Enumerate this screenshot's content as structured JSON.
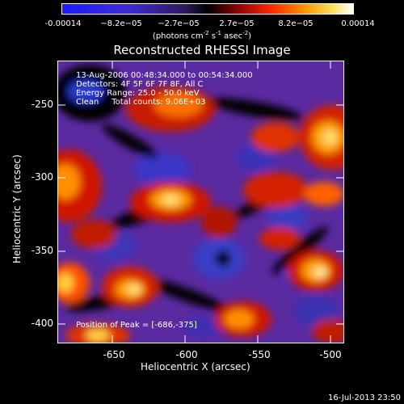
{
  "colorbar": {
    "tick_labels": [
      "-0.00014",
      "−8.2e−05",
      "−2.7e−05",
      "2.7e−05",
      "8.2e−05",
      "0.00014"
    ],
    "units_label": "(photons cm",
    "units_sup1": "-2",
    "units_mid": " s",
    "units_sup2": "-1",
    "units_end": " asec",
    "units_sup3": "-2",
    "units_close": ")",
    "range": [
      -0.00014,
      0.00014
    ]
  },
  "title": "Reconstructed RHESSI Image",
  "info": {
    "time_range": "13-Aug-2006 00:48:34.000 to 00:54:34.000",
    "detectors": "Detectors: 4F 5F 6F 7F 8F, All C",
    "energy": "Energy Range: 25.0 - 50.0 keV",
    "clean": "Clean     Total counts: 9.06E+03",
    "peak": "Position of Peak = [-686,-375]"
  },
  "axes": {
    "xlabel": "Heliocentric X (arcsec)",
    "ylabel": "Heliocentric Y (arcsec)",
    "xticks": [
      "-650",
      "-600",
      "-550",
      "-500"
    ],
    "yticks": [
      "-250",
      "-300",
      "-350",
      "-400"
    ],
    "xlim": [
      -687,
      -492
    ],
    "ylim": [
      -418,
      -225
    ]
  },
  "date_stamp": "16-Jul-2013 23:50",
  "colors": {
    "background": "#000000",
    "colormap_low": "#1a1aff",
    "colormap_mid": "#000000",
    "colormap_high": "#ffffff"
  }
}
